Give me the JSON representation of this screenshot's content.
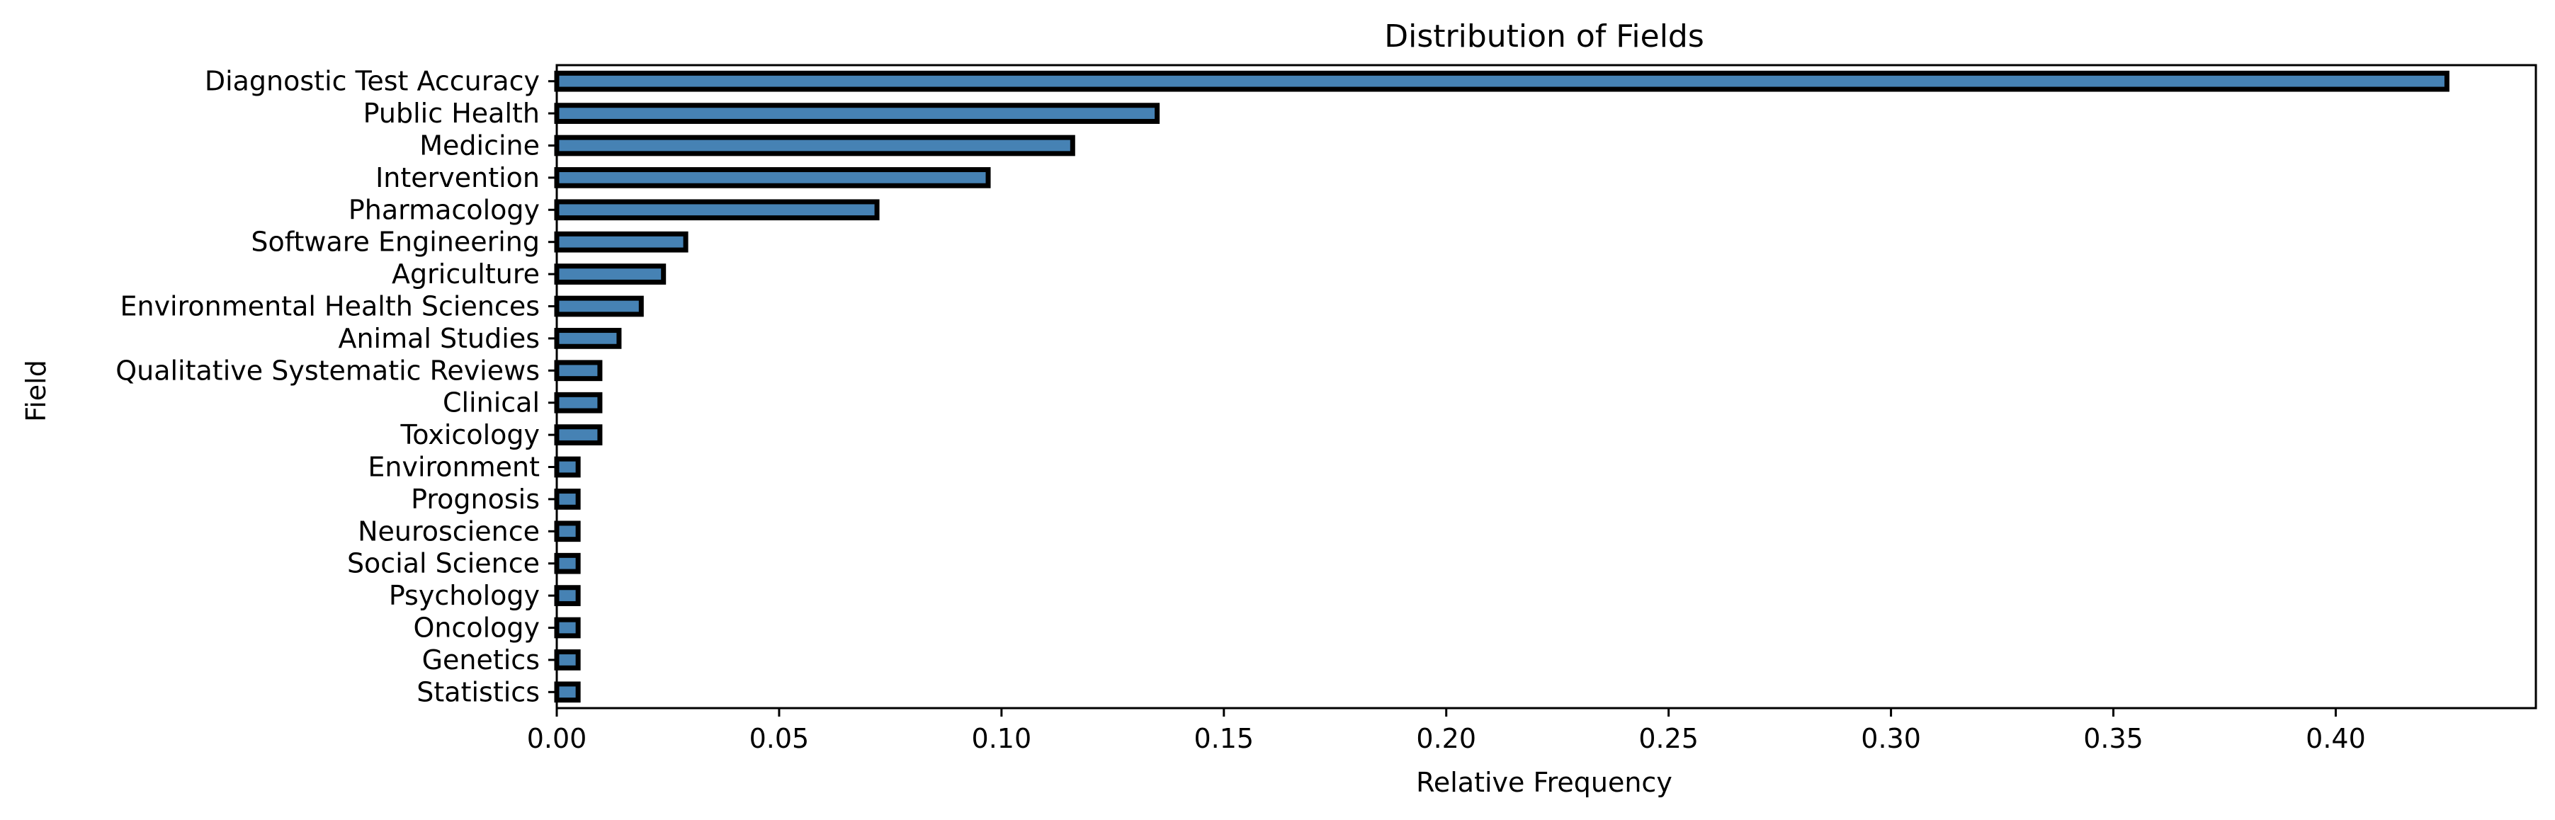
{
  "chart_data": {
    "type": "bar",
    "orientation": "horizontal",
    "title": "Distribution of Fields",
    "xlabel": "Relative Frequency",
    "ylabel": "Field",
    "xlim": [
      0,
      0.445
    ],
    "xticks": [
      0.0,
      0.05,
      0.1,
      0.15,
      0.2,
      0.25,
      0.3,
      0.35,
      0.4
    ],
    "xtick_labels": [
      "0.00",
      "0.05",
      "0.10",
      "0.15",
      "0.20",
      "0.25",
      "0.30",
      "0.35",
      "0.40"
    ],
    "grid": false,
    "bar_color": "#4682b4",
    "edge_color": "#000000",
    "categories": [
      "Diagnostic Test Accuracy",
      "Public Health",
      "Medicine",
      "Intervention",
      "Pharmacology",
      "Software Engineering",
      "Agriculture",
      "Environmental Health Sciences",
      "Animal Studies",
      "Qualitative Systematic Reviews ",
      "Clinical",
      "Toxicology",
      "Environment",
      "Prognosis",
      "Neuroscience",
      "Social Science",
      "Psychology",
      "Oncology",
      "Genetics",
      "Statistics"
    ],
    "values": [
      0.425,
      0.135,
      0.116,
      0.097,
      0.072,
      0.029,
      0.024,
      0.019,
      0.014,
      0.0097,
      0.0097,
      0.0097,
      0.0048,
      0.0048,
      0.0048,
      0.0048,
      0.0048,
      0.0048,
      0.0048,
      0.0048
    ]
  }
}
